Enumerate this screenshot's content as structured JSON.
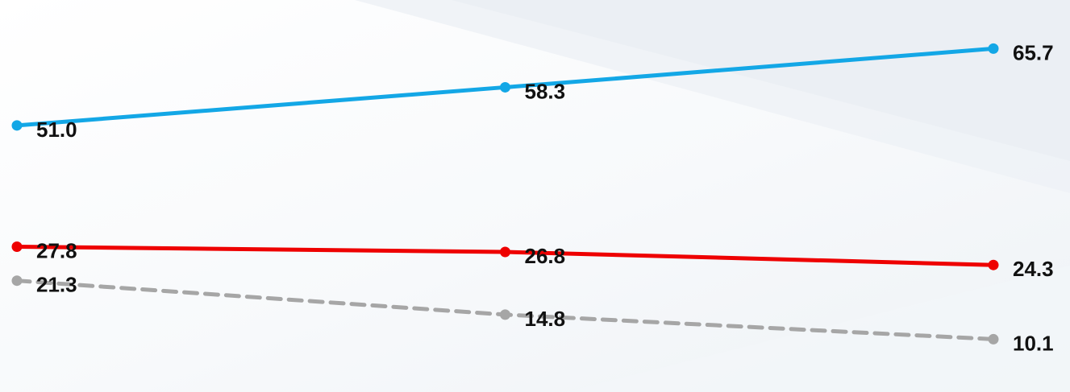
{
  "chart_data": {
    "type": "line",
    "title": "",
    "xlabel": "",
    "ylabel": "",
    "x": [
      1,
      2,
      3
    ],
    "ylim": [
      0,
      75
    ],
    "grid": false,
    "legend": "none",
    "series": [
      {
        "color": "#13a7e6",
        "line_style": "solid",
        "values": [
          51.0,
          58.3,
          65.7
        ],
        "labels": [
          "51.0",
          "58.3",
          "65.7"
        ]
      },
      {
        "color": "#ee0000",
        "line_style": "solid",
        "values": [
          27.8,
          26.8,
          24.3
        ],
        "labels": [
          "27.8",
          "26.8",
          "24.3"
        ]
      },
      {
        "color": "#a6a6a6",
        "line_style": "dashed",
        "values": [
          21.3,
          14.8,
          10.1
        ],
        "labels": [
          "21.3",
          "14.8",
          "10.1"
        ]
      }
    ]
  }
}
